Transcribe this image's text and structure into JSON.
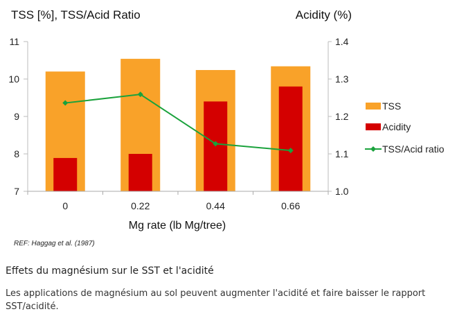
{
  "chart_data": {
    "type": "bar",
    "categories": [
      "0",
      "0.22",
      "0.44",
      "0.66"
    ],
    "xlabel": "Mg rate (lb Mg/tree)",
    "ylabel": "TSS [%], TSS/Acid Ratio",
    "y2label": "Acidity (%)",
    "ylim": [
      7,
      11
    ],
    "y2lim": [
      1.0,
      1.4
    ],
    "yticks": [
      "7",
      "8",
      "9",
      "10",
      "11"
    ],
    "y2ticks": [
      "1.0",
      "1.1",
      "1.2",
      "1.3",
      "1.4"
    ],
    "grid": false,
    "legend": "right",
    "series": [
      {
        "name": "TSS",
        "type": "bar",
        "axis": "left",
        "color": "#F9A229",
        "values": [
          10.2,
          10.54,
          10.24,
          10.34
        ]
      },
      {
        "name": "Acidity",
        "type": "bar",
        "axis": "right",
        "color": "#D40000",
        "values": [
          1.089,
          1.1,
          1.24,
          1.28
        ]
      },
      {
        "name": "TSS/Acid ratio",
        "type": "line",
        "axis": "left",
        "color": "#1AA23C",
        "values": [
          9.36,
          9.59,
          8.27,
          8.09
        ]
      }
    ]
  },
  "reference": "REF: Haggag  et al. (1987)",
  "heading": "Effets du magnésium sur le SST et l'acidité",
  "paragraph": "Les applications de magnésium au sol peuvent augmenter l'acidité et faire baisser le rapport SST/acidité."
}
